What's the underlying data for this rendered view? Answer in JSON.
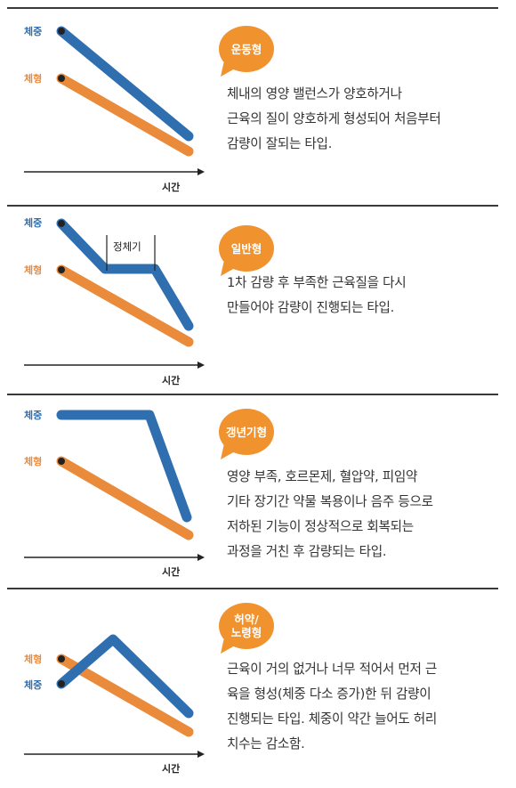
{
  "colors": {
    "weight": "#2f6fb0",
    "body_shape": "#ea8a3b",
    "badge": "#f0932f",
    "axis": "#222222"
  },
  "panels": [
    {
      "legend_weight": "체중",
      "legend_shape": "체형",
      "axis_label": "시간",
      "badge": "운동형",
      "description": "체내의 영양 밸런스가 양호하거나\n근육의 질이 양호하게 형성되어 처음부터\n감량이 잘되는 타입."
    },
    {
      "legend_weight": "체중",
      "legend_shape": "체형",
      "plateau_label": "정체기",
      "axis_label": "시간",
      "badge": "일반형",
      "description": "1차 감량 후 부족한 근육질을 다시\n만들어야 감량이 진행되는 타입."
    },
    {
      "legend_weight": "체중",
      "legend_shape": "체형",
      "axis_label": "시간",
      "badge": "갱년기형",
      "description": "영양 부족, 호르몬제, 혈압약, 피임약\n기타 장기간 약물 복용이나 음주 등으로\n저하된 기능이 정상적으로 회복되는\n과정을 거친 후 감량되는 타입."
    },
    {
      "legend_weight": "체중",
      "legend_shape": "체형",
      "axis_label": "시간",
      "badge": "허약/\n노령형",
      "description": "근육이 거의 없거나 너무 적어서 먼저 근\n육을 형성(체중 다소 증가)한 뒤 감량이\n진행되는 타입. 체중이 약간 늘어도 허리\n치수는 감소함."
    }
  ]
}
